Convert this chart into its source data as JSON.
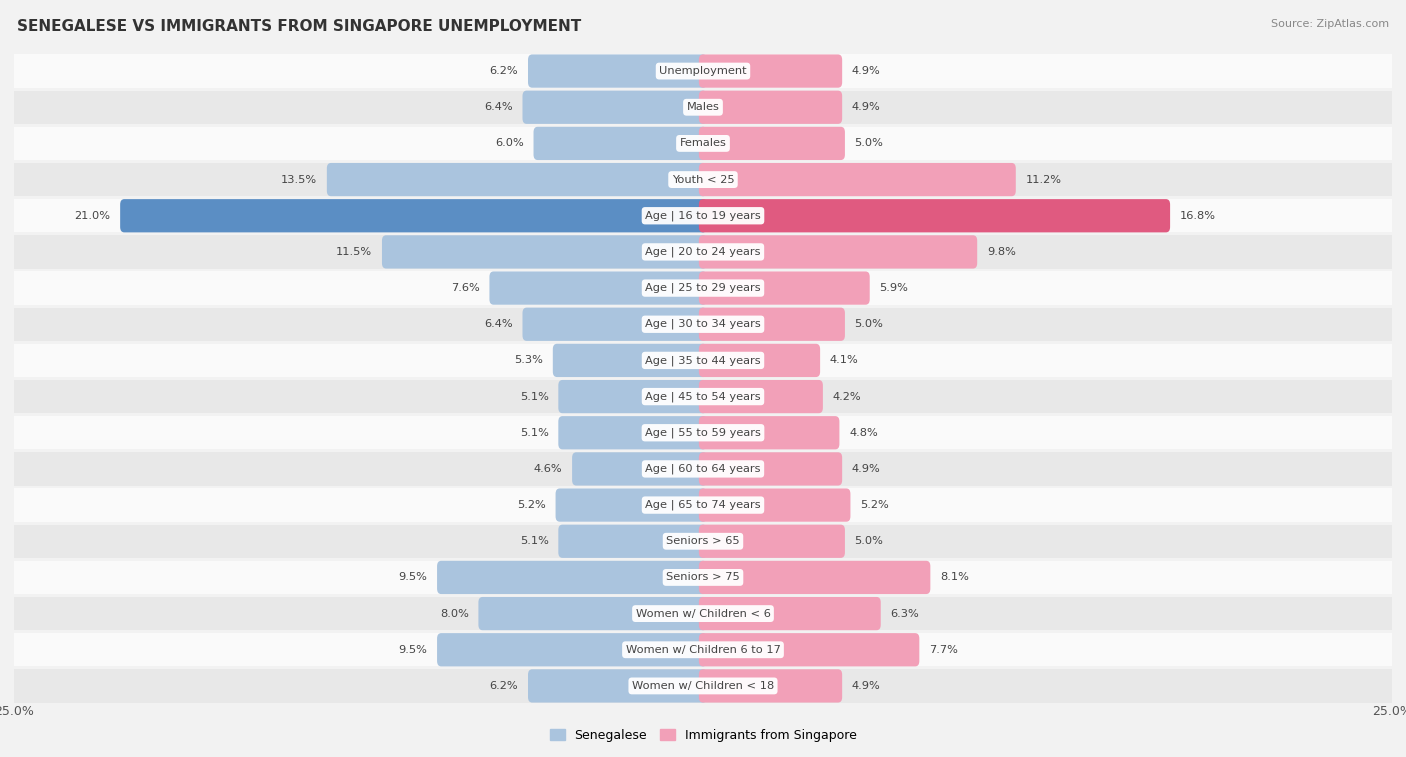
{
  "title": "SENEGALESE VS IMMIGRANTS FROM SINGAPORE UNEMPLOYMENT",
  "source": "Source: ZipAtlas.com",
  "categories": [
    "Unemployment",
    "Males",
    "Females",
    "Youth < 25",
    "Age | 16 to 19 years",
    "Age | 20 to 24 years",
    "Age | 25 to 29 years",
    "Age | 30 to 34 years",
    "Age | 35 to 44 years",
    "Age | 45 to 54 years",
    "Age | 55 to 59 years",
    "Age | 60 to 64 years",
    "Age | 65 to 74 years",
    "Seniors > 65",
    "Seniors > 75",
    "Women w/ Children < 6",
    "Women w/ Children 6 to 17",
    "Women w/ Children < 18"
  ],
  "senegalese": [
    6.2,
    6.4,
    6.0,
    13.5,
    21.0,
    11.5,
    7.6,
    6.4,
    5.3,
    5.1,
    5.1,
    4.6,
    5.2,
    5.1,
    9.5,
    8.0,
    9.5,
    6.2
  ],
  "singapore": [
    4.9,
    4.9,
    5.0,
    11.2,
    16.8,
    9.8,
    5.9,
    5.0,
    4.1,
    4.2,
    4.8,
    4.9,
    5.2,
    5.0,
    8.1,
    6.3,
    7.7,
    4.9
  ],
  "senegalese_color": "#aac4de",
  "singapore_color": "#f2a0b8",
  "highlight_senegalese_color": "#5b8ec4",
  "highlight_singapore_color": "#e05a80",
  "background_color": "#f2f2f2",
  "row_bg_light": "#fafafa",
  "row_bg_dark": "#e8e8e8",
  "axis_max": 25.0,
  "legend_label_senegalese": "Senegalese",
  "legend_label_singapore": "Immigrants from Singapore"
}
